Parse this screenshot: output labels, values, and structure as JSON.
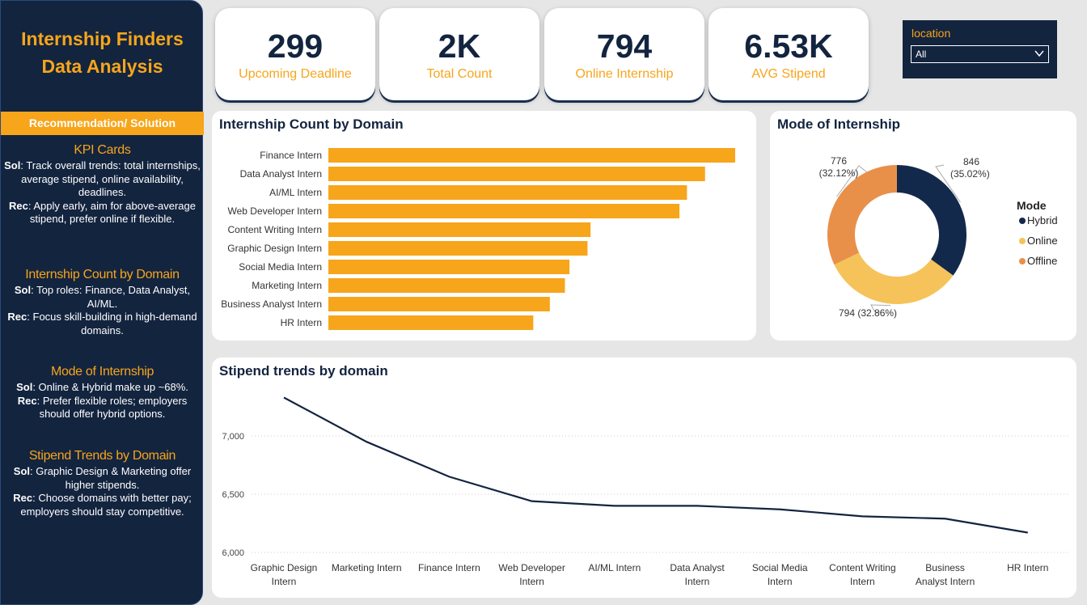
{
  "sidebar": {
    "title": "Internship Finders\nData Analysis",
    "rec_header": "Recommendation/ Solution",
    "sections": [
      {
        "title": "KPI Cards",
        "sol": "Track overall trends: total internships, average stipend, online availability, deadlines.",
        "rec": "Apply early, aim for above-average stipend, prefer online if flexible."
      },
      {
        "title": "Internship Count by Domain",
        "sol": "Top roles: Finance, Data Analyst, AI/ML.",
        "rec": "Focus skill-building in high-demand domains."
      },
      {
        "title": "Mode of Internship",
        "sol": "Online & Hybrid make up ~68%.",
        "rec": "Prefer flexible roles; employers should offer hybrid options."
      },
      {
        "title": "Stipend Trends by Domain",
        "sol": "Graphic Design & Marketing offer higher stipends.",
        "rec": "Choose domains with better pay; employers should stay competitive."
      }
    ],
    "sol_label": "Sol",
    "rec_label": "Rec"
  },
  "kpis": [
    {
      "value": "299",
      "label": "Upcoming Deadline"
    },
    {
      "value": "2K",
      "label": "Total Count"
    },
    {
      "value": "794",
      "label": "Online Internship"
    },
    {
      "value": "6.53K",
      "label": "AVG Stipend"
    }
  ],
  "slicer": {
    "label": "location",
    "value": "All"
  },
  "colors": {
    "navy": "#13243f",
    "orange": "#f7a51b",
    "hybrid": "#13294b",
    "online": "#f5c35a",
    "offline": "#e8904a"
  },
  "chart_data": [
    {
      "type": "bar",
      "orientation": "horizontal",
      "title": "Internship Count by Domain",
      "categories": [
        "Finance Intern",
        "Data Analyst Intern",
        "AI/ML Intern",
        "Web Developer Intern",
        "Content Writing Intern",
        "Graphic Design Intern",
        "Social Media Intern",
        "Marketing Intern",
        "Business Analyst Intern",
        "HR Intern"
      ],
      "values": [
        270,
        250,
        238,
        233,
        174,
        172,
        160,
        157,
        147,
        136
      ],
      "xlabel": "",
      "ylabel": ""
    },
    {
      "type": "pie",
      "style": "donut",
      "title": "Mode of Internship",
      "legend_title": "Mode",
      "legend_position": "right",
      "slices": [
        {
          "name": "Hybrid",
          "value": 846,
          "label": "846\n(35.02%)"
        },
        {
          "name": "Online",
          "value": 794,
          "label": "794 (32.86%)"
        },
        {
          "name": "Offline",
          "value": 776,
          "label": "776\n(32.12%)"
        }
      ]
    },
    {
      "type": "line",
      "title": "Stipend trends by domain",
      "categories": [
        "Graphic Design Intern",
        "Marketing Intern",
        "Finance Intern",
        "Web Developer Intern",
        "AI/ML Intern",
        "Data Analyst Intern",
        "Social Media Intern",
        "Content Writing Intern",
        "Business Analyst Intern",
        "HR Intern"
      ],
      "values": [
        7330,
        6950,
        6650,
        6440,
        6400,
        6400,
        6370,
        6310,
        6290,
        6170
      ],
      "ylim": [
        6000,
        7400
      ],
      "yticks": [
        "6,000",
        "6,500",
        "7,000"
      ],
      "xlabel": "",
      "ylabel": "",
      "grid": "horizontal dotted"
    }
  ]
}
